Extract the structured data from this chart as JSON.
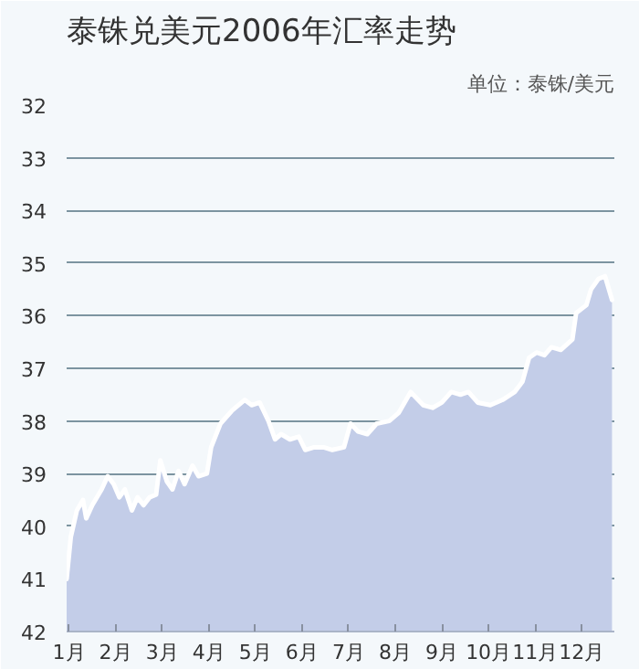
{
  "chart_data": {
    "type": "area",
    "title": "泰铢兑美元2006年汇率走势",
    "annotations": [
      "单位：泰铢/美元"
    ],
    "x": [
      0.95,
      1.04,
      1.17,
      1.3,
      1.37,
      1.5,
      1.7,
      1.83,
      1.96,
      2.08,
      2.2,
      2.35,
      2.47,
      2.6,
      2.73,
      2.87,
      2.96,
      3.1,
      3.22,
      3.35,
      3.48,
      3.65,
      3.78,
      3.96,
      4.05,
      4.25,
      4.5,
      4.77,
      4.92,
      5.09,
      5.28,
      5.42,
      5.55,
      5.74,
      5.93,
      6.07,
      6.26,
      6.46,
      6.65,
      6.9,
      7.04,
      7.2,
      7.4,
      7.6,
      7.87,
      8.07,
      8.33,
      8.6,
      8.8,
      9.0,
      9.2,
      9.4,
      9.57,
      9.77,
      10.04,
      10.3,
      10.56,
      10.73,
      10.87,
      11.03,
      11.2,
      11.35,
      11.55,
      11.8,
      11.88,
      12.1,
      12.2,
      12.36,
      12.5,
      12.65
    ],
    "series": [
      {
        "color": "#c3cde8",
        "values": [
          41.0,
          40.2,
          39.7,
          39.5,
          39.85,
          39.6,
          39.3,
          39.05,
          39.2,
          39.45,
          39.3,
          39.7,
          39.45,
          39.6,
          39.45,
          39.4,
          38.75,
          39.15,
          39.3,
          38.95,
          39.2,
          38.85,
          39.05,
          39.0,
          38.5,
          38.05,
          37.8,
          37.6,
          37.7,
          37.65,
          38.0,
          38.35,
          38.25,
          38.35,
          38.3,
          38.55,
          38.5,
          38.5,
          38.55,
          38.5,
          38.05,
          38.2,
          38.25,
          38.05,
          38.0,
          37.85,
          37.45,
          37.7,
          37.75,
          37.65,
          37.45,
          37.5,
          37.45,
          37.65,
          37.7,
          37.6,
          37.45,
          37.25,
          36.8,
          36.7,
          36.75,
          36.6,
          36.65,
          36.45,
          35.95,
          35.8,
          35.5,
          35.3,
          35.25,
          35.7
        ]
      }
    ],
    "xlim": [
      0.95,
      12.7
    ],
    "xticks": [
      {
        "value": 1,
        "label": "1月"
      },
      {
        "value": 2,
        "label": "2月"
      },
      {
        "value": 3,
        "label": "3月"
      },
      {
        "value": 4,
        "label": "4月"
      },
      {
        "value": 5,
        "label": "5月"
      },
      {
        "value": 6,
        "label": "6月"
      },
      {
        "value": 7,
        "label": "7月"
      },
      {
        "value": 8,
        "label": "8月"
      },
      {
        "value": 9,
        "label": "9月"
      },
      {
        "value": 10,
        "label": "10月"
      },
      {
        "value": 11,
        "label": "11月"
      },
      {
        "value": 12,
        "label": "12月"
      }
    ],
    "ylim": [
      42,
      32
    ],
    "yticks": [
      32,
      33,
      34,
      35,
      36,
      37,
      38,
      39,
      40,
      41,
      42
    ],
    "grid": "y"
  }
}
